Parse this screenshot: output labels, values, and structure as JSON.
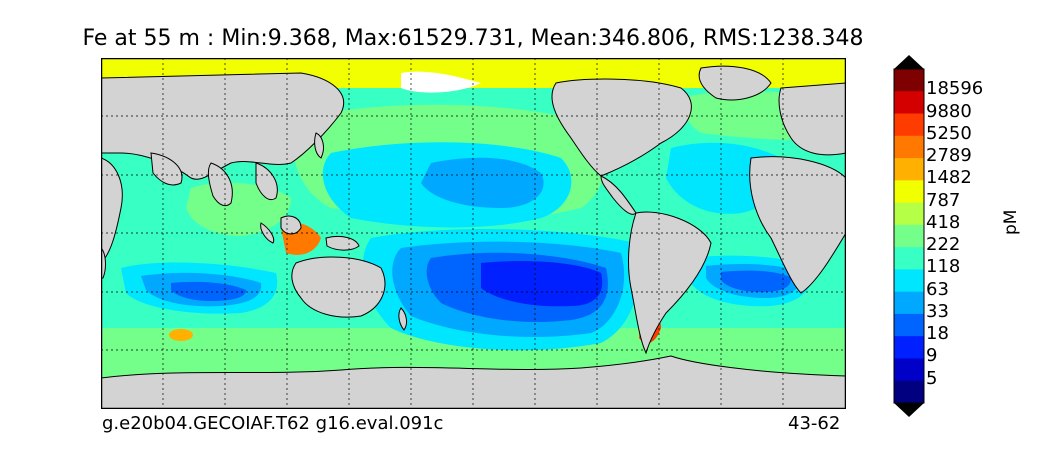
{
  "title": "Fe at 55 m : Min:9.368, Max:61529.731, Mean:346.806, RMS:1238.348",
  "footer": {
    "case_name": "g.e20b04.GECOIAF.T62 g16.eval.091c",
    "years": "43-62"
  },
  "colorbar": {
    "units": "pM",
    "levels": [
      "18596",
      "9880",
      "5250",
      "2789",
      "1482",
      "787",
      "418",
      "222",
      "118",
      "63",
      "33",
      "18",
      "9",
      "5"
    ],
    "colors": [
      "#7f0000",
      "#d40000",
      "#ff3c00",
      "#ff7800",
      "#ffb000",
      "#f2ff00",
      "#b6ff47",
      "#74ff8a",
      "#38ffc4",
      "#00e6ff",
      "#00a8ff",
      "#0064ff",
      "#0020ff",
      "#0000c8",
      "#000080"
    ],
    "over_color": "#000000",
    "under_color": "#000000"
  },
  "colors": {
    "land": "#d3d3d3",
    "sea_ice_mask": "#ffffff"
  },
  "chart_data": {
    "type": "heatmap",
    "title": "Fe at 55 m : Min:9.368, Max:61529.731, Mean:346.806, RMS:1238.348",
    "variable": "Fe",
    "depth": "55 m",
    "units": "pM",
    "stats": {
      "min": 9.368,
      "max": 61529.731,
      "mean": 346.806,
      "rms": 1238.348
    },
    "contour_levels": [
      5,
      9,
      18,
      33,
      63,
      118,
      222,
      418,
      787,
      1482,
      2789,
      5250,
      9880,
      18596
    ],
    "projection": "global lat-lon",
    "grid": true
  }
}
